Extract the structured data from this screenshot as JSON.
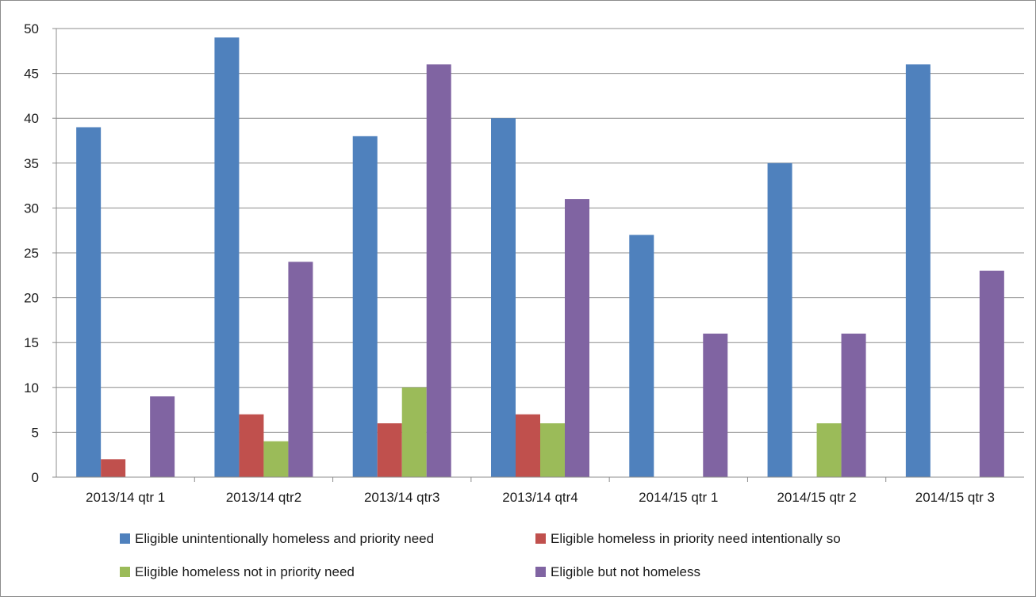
{
  "chart_data": {
    "type": "bar",
    "title": "",
    "xlabel": "",
    "ylabel": "",
    "ylim": [
      0,
      50
    ],
    "ytick_step": 5,
    "yticks": [
      "0",
      "5",
      "10",
      "15",
      "20",
      "25",
      "30",
      "35",
      "40",
      "45",
      "50"
    ],
    "grid": true,
    "legend_position": "bottom",
    "categories": [
      "2013/14 qtr 1",
      "2013/14 qtr2",
      "2013/14 qtr3",
      "2013/14 qtr4",
      "2014/15 qtr 1",
      "2014/15 qtr 2",
      "2014/15 qtr 3"
    ],
    "series": [
      {
        "name": "Eligible unintentionally homeless and priority need",
        "color": "#4f81bd",
        "values": [
          39,
          49,
          38,
          40,
          27,
          35,
          46
        ]
      },
      {
        "name": "Eligible homeless in priority need intentionally so",
        "color": "#c0504d",
        "values": [
          2,
          7,
          6,
          7,
          0,
          0,
          0
        ]
      },
      {
        "name": "Eligible homeless not in priority need",
        "color": "#9bbb59",
        "values": [
          0,
          4,
          10,
          6,
          0,
          6,
          0
        ]
      },
      {
        "name": "Eligible but not homeless",
        "color": "#8064a2",
        "values": [
          9,
          24,
          46,
          31,
          16,
          16,
          23
        ]
      }
    ]
  }
}
